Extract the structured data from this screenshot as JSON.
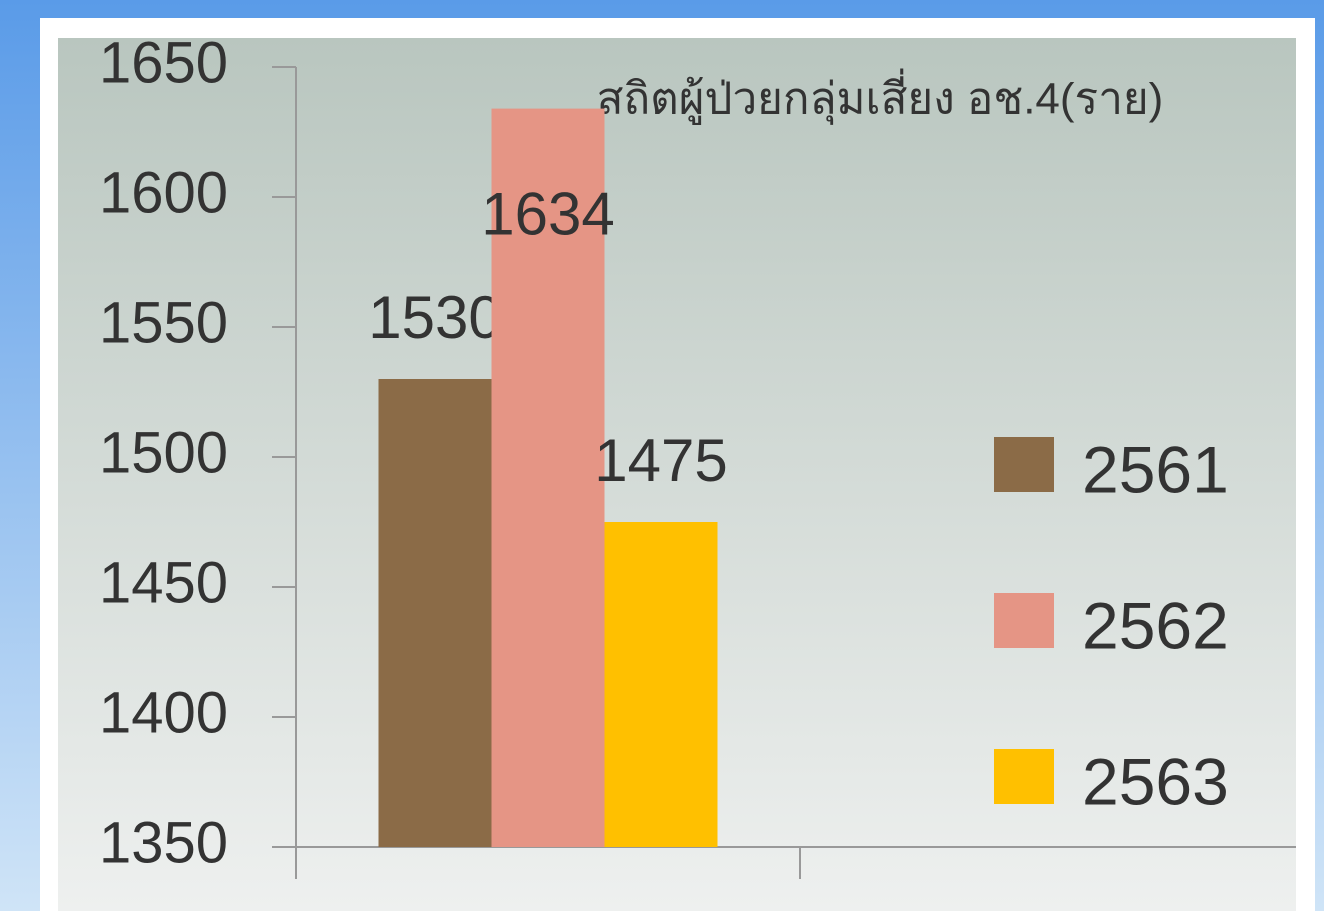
{
  "chart_data": {
    "type": "bar",
    "title": "สถิตผู้ป่วยกลุ่มเสี่ยง อช.4(ราย)",
    "categories": [
      null
    ],
    "series": [
      {
        "name": "2561",
        "color": "#8b6b47",
        "values": [
          1530
        ]
      },
      {
        "name": "2562",
        "color": "#e59585",
        "values": [
          1634
        ]
      },
      {
        "name": "2563",
        "color": "#ffc000",
        "values": [
          1475
        ]
      }
    ],
    "ylim": [
      1350,
      1650
    ],
    "yticks": [
      1350,
      1400,
      1450,
      1500,
      1550,
      1600,
      1650
    ],
    "grid": false,
    "legend": "right"
  }
}
